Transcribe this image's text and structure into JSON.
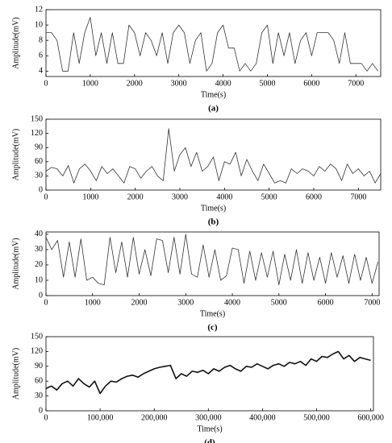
{
  "chart_data": [
    {
      "type": "line",
      "caption": "(a)",
      "x_label": "Time(s)",
      "y_label": "Amplitude(mV)",
      "xlim": [
        0,
        7560
      ],
      "ylim": [
        3.3,
        12
      ],
      "xticks": [
        0,
        1000,
        2000,
        3000,
        4000,
        5000,
        6000,
        7000
      ],
      "yticks": [
        4,
        6,
        8,
        10,
        12
      ],
      "series": [
        {
          "color": "#333333",
          "x": [
            0,
            125,
            250,
            375,
            500,
            625,
            750,
            875,
            1000,
            1125,
            1250,
            1375,
            1500,
            1625,
            1750,
            1875,
            2000,
            2125,
            2250,
            2375,
            2500,
            2625,
            2750,
            2875,
            3000,
            3125,
            3250,
            3375,
            3500,
            3625,
            3750,
            3875,
            4000,
            4125,
            4250,
            4375,
            4500,
            4625,
            4750,
            4875,
            5000,
            5125,
            5250,
            5375,
            5500,
            5625,
            5750,
            5875,
            6000,
            6125,
            6250,
            6375,
            6500,
            6625,
            6750,
            6875,
            7000,
            7125,
            7250,
            7375,
            7500
          ],
          "values": [
            9,
            9,
            8,
            4,
            4,
            9,
            5,
            9,
            11,
            6,
            9,
            5,
            9,
            5,
            5,
            10,
            9,
            6,
            9,
            8,
            6,
            9,
            5,
            9,
            10,
            9,
            5,
            8,
            9,
            4,
            5,
            9,
            10,
            7,
            7,
            4,
            5,
            4,
            5,
            9,
            10,
            5,
            9,
            6,
            9,
            5,
            8,
            9,
            6,
            9,
            9,
            9,
            8,
            5,
            9,
            5,
            5,
            5,
            4,
            5,
            4
          ]
        }
      ]
    },
    {
      "type": "line",
      "caption": "(b)",
      "x_label": "Time(s)",
      "y_label": "Amplitude(mV)",
      "xlim": [
        0,
        7500
      ],
      "ylim": [
        0,
        150
      ],
      "xticks": [
        0,
        1000,
        2000,
        3000,
        4000,
        5000,
        6000,
        7000
      ],
      "yticks": [
        0,
        30,
        60,
        90,
        120,
        150
      ],
      "series": [
        {
          "color": "#333333",
          "x": [
            0,
            125,
            250,
            375,
            500,
            625,
            750,
            875,
            1000,
            1125,
            1250,
            1375,
            1500,
            1625,
            1750,
            1875,
            2000,
            2125,
            2250,
            2375,
            2500,
            2625,
            2750,
            2875,
            3000,
            3125,
            3250,
            3375,
            3500,
            3625,
            3750,
            3875,
            4000,
            4125,
            4250,
            4375,
            4500,
            4625,
            4750,
            4875,
            5000,
            5125,
            5250,
            5375,
            5500,
            5625,
            5750,
            5875,
            6000,
            6125,
            6250,
            6375,
            6500,
            6625,
            6750,
            6875,
            7000,
            7125,
            7250,
            7375,
            7500
          ],
          "values": [
            40,
            48,
            45,
            30,
            52,
            15,
            45,
            55,
            40,
            20,
            50,
            35,
            45,
            30,
            15,
            50,
            45,
            25,
            40,
            50,
            30,
            20,
            130,
            40,
            75,
            90,
            50,
            80,
            40,
            50,
            70,
            20,
            60,
            55,
            80,
            30,
            65,
            40,
            20,
            55,
            35,
            15,
            20,
            15,
            45,
            35,
            45,
            40,
            30,
            50,
            40,
            55,
            45,
            20,
            55,
            35,
            45,
            30,
            40,
            15,
            35
          ]
        }
      ]
    },
    {
      "type": "line",
      "caption": "(c)",
      "x_label": "Time(s)",
      "y_label": "Amplitude(mV)",
      "xlim": [
        0,
        7150
      ],
      "ylim": [
        0,
        41.5
      ],
      "xticks": [
        0,
        1000,
        2000,
        3000,
        4000,
        5000,
        6000,
        7000
      ],
      "yticks": [
        0,
        10,
        20,
        30,
        40
      ],
      "series": [
        {
          "color": "#333333",
          "x": [
            0,
            125,
            250,
            375,
            500,
            625,
            750,
            875,
            1000,
            1125,
            1250,
            1375,
            1500,
            1625,
            1750,
            1875,
            2000,
            2125,
            2250,
            2375,
            2500,
            2625,
            2750,
            2875,
            3000,
            3125,
            3250,
            3375,
            3500,
            3625,
            3750,
            3875,
            4000,
            4125,
            4250,
            4375,
            4500,
            4625,
            4750,
            4875,
            5000,
            5125,
            5250,
            5375,
            5500,
            5625,
            5750,
            5875,
            6000,
            6125,
            6250,
            6375,
            6500,
            6625,
            6750,
            6875,
            7000,
            7125
          ],
          "values": [
            38,
            30,
            36,
            12,
            35,
            12,
            37,
            10,
            12,
            8,
            7,
            38,
            15,
            35,
            12,
            38,
            14,
            30,
            13,
            37,
            36,
            15,
            38,
            14,
            40,
            14,
            12,
            33,
            12,
            30,
            10,
            13,
            31,
            30,
            8,
            29,
            10,
            28,
            12,
            29,
            7,
            27,
            10,
            30,
            8,
            28,
            10,
            25,
            8,
            28,
            12,
            26,
            8,
            27,
            10,
            25,
            8,
            22
          ]
        }
      ]
    },
    {
      "type": "line",
      "caption": "(d)",
      "x_label": "Time(s)",
      "y_label": "Amplitude(mV)",
      "xlim": [
        0,
        605000
      ],
      "ylim": [
        0,
        150
      ],
      "xticks": [
        0,
        {
          "value": 100000,
          "label": "100,000"
        },
        {
          "value": 200000,
          "label": "200,000"
        },
        {
          "value": 300000,
          "label": "300,000"
        },
        {
          "value": 400000,
          "label": "400,000"
        },
        {
          "value": 500000,
          "label": "500,000"
        },
        {
          "value": 600000,
          "label": "600,000"
        }
      ],
      "yticks": [
        0,
        30,
        60,
        90,
        120,
        150
      ],
      "series": [
        {
          "color": "#111111",
          "x": [
            0,
            10000,
            20000,
            30000,
            40000,
            50000,
            60000,
            70000,
            80000,
            90000,
            100000,
            110000,
            120000,
            130000,
            140000,
            150000,
            160000,
            170000,
            180000,
            190000,
            200000,
            210000,
            220000,
            230000,
            240000,
            250000,
            260000,
            270000,
            280000,
            290000,
            300000,
            310000,
            320000,
            330000,
            340000,
            350000,
            360000,
            370000,
            380000,
            390000,
            400000,
            410000,
            420000,
            430000,
            440000,
            450000,
            460000,
            470000,
            480000,
            490000,
            500000,
            510000,
            520000,
            530000,
            540000,
            550000,
            560000,
            570000,
            580000,
            590000,
            600000
          ],
          "values": [
            45,
            50,
            42,
            55,
            60,
            50,
            65,
            55,
            48,
            60,
            35,
            50,
            60,
            58,
            65,
            70,
            72,
            68,
            75,
            80,
            85,
            88,
            90,
            92,
            65,
            75,
            70,
            80,
            78,
            82,
            75,
            85,
            80,
            88,
            92,
            85,
            80,
            90,
            88,
            95,
            90,
            85,
            92,
            95,
            90,
            98,
            95,
            100,
            92,
            105,
            100,
            110,
            108,
            115,
            120,
            105,
            112,
            100,
            108,
            105,
            102
          ]
        }
      ]
    }
  ]
}
